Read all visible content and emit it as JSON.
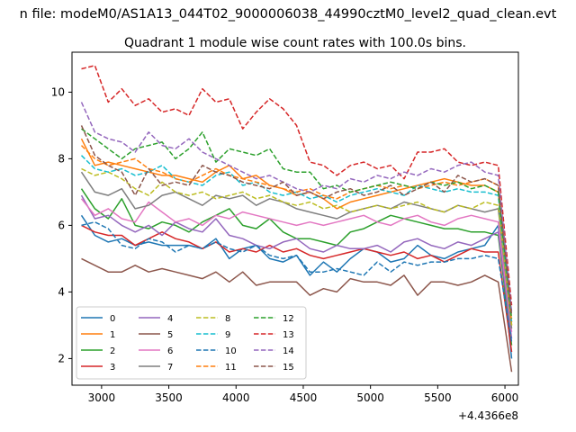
{
  "suptitle": "n file: modeM0/AS1A13_044T02_9000006038_44990cztM0_level2_quad_clean.evt",
  "chart_data": {
    "type": "line",
    "title": "Quadrant 1 module wise count rates with 100.0s bins.",
    "xlabel": "",
    "ylabel": "",
    "x_offset_label": "+4.4366e8",
    "xlim": [
      2780,
      6100
    ],
    "ylim": [
      1.2,
      11.2
    ],
    "xticks": [
      3000,
      3500,
      4000,
      4500,
      5000,
      5500,
      6000
    ],
    "yticks": [
      2,
      4,
      6,
      8,
      10
    ],
    "grid": false,
    "legend": {
      "position": "lower-left",
      "columns": 4
    },
    "x": [
      2850,
      2950,
      3050,
      3150,
      3250,
      3350,
      3450,
      3550,
      3650,
      3750,
      3850,
      3950,
      4050,
      4150,
      4250,
      4350,
      4450,
      4550,
      4650,
      4750,
      4850,
      4950,
      5050,
      5150,
      5250,
      5350,
      5450,
      5550,
      5650,
      5750,
      5850,
      5950,
      6050
    ],
    "series": [
      {
        "name": "0",
        "color": "#1f77b4",
        "dash": "solid",
        "values": [
          6.3,
          5.7,
          5.5,
          5.6,
          5.4,
          5.5,
          5.4,
          5.4,
          5.4,
          5.3,
          5.6,
          5.0,
          5.3,
          5.4,
          5.0,
          4.9,
          5.1,
          4.5,
          4.9,
          4.6,
          5.0,
          5.3,
          5.2,
          4.9,
          5.0,
          5.4,
          5.1,
          5.0,
          5.2,
          5.3,
          5.4,
          6.0,
          2.0
        ]
      },
      {
        "name": "1",
        "color": "#ff7f0e",
        "dash": "solid",
        "values": [
          8.6,
          7.8,
          7.9,
          7.8,
          7.7,
          7.6,
          7.5,
          7.5,
          7.4,
          7.3,
          7.6,
          7.8,
          7.4,
          7.5,
          7.2,
          7.1,
          6.9,
          7.0,
          6.8,
          6.5,
          6.7,
          6.8,
          6.9,
          7.0,
          7.1,
          7.2,
          7.3,
          7.4,
          7.3,
          7.2,
          7.2,
          7.0,
          3.0
        ]
      },
      {
        "name": "2",
        "color": "#2ca02c",
        "dash": "solid",
        "values": [
          7.1,
          6.5,
          6.2,
          6.8,
          6.0,
          5.9,
          6.1,
          6.0,
          5.8,
          6.1,
          6.3,
          6.5,
          6.0,
          5.9,
          6.2,
          5.8,
          5.6,
          5.6,
          5.5,
          5.4,
          5.8,
          5.9,
          6.1,
          6.3,
          6.2,
          6.1,
          6.0,
          5.9,
          5.9,
          5.8,
          5.8,
          5.7,
          2.4
        ]
      },
      {
        "name": "3",
        "color": "#d62728",
        "dash": "solid",
        "values": [
          6.0,
          5.8,
          5.7,
          5.7,
          5.4,
          5.6,
          5.8,
          5.6,
          5.5,
          5.3,
          5.5,
          5.2,
          5.3,
          5.2,
          5.4,
          5.2,
          5.3,
          5.1,
          5.0,
          5.1,
          5.2,
          5.3,
          5.2,
          5.1,
          5.2,
          5.0,
          5.1,
          4.9,
          5.1,
          5.3,
          5.2,
          5.2,
          2.2
        ]
      },
      {
        "name": "4",
        "color": "#9467bd",
        "dash": "solid",
        "values": [
          6.9,
          6.2,
          6.3,
          6.0,
          5.8,
          6.0,
          5.7,
          6.1,
          5.9,
          5.8,
          6.2,
          5.7,
          5.6,
          5.4,
          5.3,
          5.5,
          5.6,
          5.3,
          5.2,
          5.4,
          5.3,
          5.3,
          5.4,
          5.2,
          5.5,
          5.6,
          5.4,
          5.3,
          5.5,
          5.4,
          5.6,
          5.8,
          2.6
        ]
      },
      {
        "name": "5",
        "color": "#8c564b",
        "dash": "solid",
        "values": [
          5.0,
          4.8,
          4.6,
          4.6,
          4.8,
          4.6,
          4.7,
          4.6,
          4.5,
          4.4,
          4.6,
          4.3,
          4.6,
          4.2,
          4.3,
          4.3,
          4.3,
          3.9,
          4.1,
          4.0,
          4.4,
          4.3,
          4.3,
          4.2,
          4.5,
          3.9,
          4.3,
          4.3,
          4.2,
          4.3,
          4.5,
          4.3,
          1.6
        ]
      },
      {
        "name": "6",
        "color": "#e377c2",
        "dash": "solid",
        "values": [
          6.8,
          6.3,
          6.5,
          6.2,
          6.1,
          6.7,
          6.4,
          6.1,
          6.2,
          6.0,
          6.3,
          6.2,
          6.4,
          6.3,
          6.2,
          6.1,
          6.0,
          6.1,
          6.0,
          6.1,
          6.2,
          6.3,
          6.1,
          6.0,
          6.2,
          6.3,
          6.1,
          6.0,
          6.2,
          6.3,
          6.2,
          6.1,
          2.8
        ]
      },
      {
        "name": "7",
        "color": "#7f7f7f",
        "dash": "solid",
        "values": [
          7.6,
          7.0,
          6.9,
          7.1,
          6.5,
          6.6,
          6.9,
          7.0,
          6.8,
          6.6,
          6.9,
          6.8,
          6.9,
          6.6,
          6.8,
          6.7,
          6.5,
          6.4,
          6.3,
          6.2,
          6.4,
          6.5,
          6.6,
          6.5,
          6.7,
          6.6,
          6.5,
          6.4,
          6.6,
          6.5,
          6.4,
          6.5,
          2.9
        ]
      },
      {
        "name": "8",
        "color": "#bcbd22",
        "dash": "dashed",
        "values": [
          7.7,
          7.5,
          7.6,
          7.4,
          7.1,
          6.9,
          7.3,
          7.0,
          6.9,
          7.0,
          6.8,
          6.9,
          7.0,
          6.8,
          6.9,
          6.7,
          6.6,
          6.7,
          6.5,
          6.6,
          6.4,
          6.5,
          6.6,
          6.5,
          6.6,
          6.7,
          6.5,
          6.4,
          6.6,
          6.5,
          6.7,
          6.6,
          3.0
        ]
      },
      {
        "name": "9",
        "color": "#17becf",
        "dash": "dashed",
        "values": [
          8.1,
          7.7,
          7.6,
          7.7,
          7.5,
          7.6,
          7.8,
          7.4,
          7.3,
          7.2,
          7.5,
          7.6,
          7.2,
          7.3,
          7.0,
          6.9,
          7.0,
          6.8,
          6.9,
          6.7,
          6.9,
          7.0,
          7.1,
          7.0,
          6.9,
          7.2,
          7.1,
          7.0,
          7.1,
          7.0,
          7.0,
          6.9,
          3.1
        ]
      },
      {
        "name": "10",
        "color": "#1f77b4",
        "dash": "dashed",
        "values": [
          6.0,
          6.1,
          5.9,
          5.4,
          5.3,
          5.6,
          5.5,
          5.2,
          5.4,
          5.3,
          5.5,
          5.3,
          5.2,
          5.4,
          5.1,
          5.0,
          5.1,
          4.6,
          4.6,
          4.7,
          4.6,
          4.5,
          4.9,
          4.6,
          4.9,
          4.8,
          4.9,
          4.9,
          5.0,
          5.0,
          5.1,
          5.0,
          2.5
        ]
      },
      {
        "name": "11",
        "color": "#ff7f0e",
        "dash": "dashed",
        "values": [
          8.4,
          8.0,
          7.8,
          7.9,
          8.0,
          7.7,
          7.6,
          7.4,
          7.3,
          7.5,
          7.7,
          7.5,
          7.4,
          7.3,
          7.2,
          7.1,
          7.0,
          7.1,
          6.9,
          6.8,
          7.0,
          7.1,
          7.2,
          7.1,
          7.2,
          7.1,
          7.2,
          7.3,
          7.2,
          7.3,
          7.4,
          7.2,
          3.1
        ]
      },
      {
        "name": "12",
        "color": "#2ca02c",
        "dash": "dashed",
        "values": [
          8.9,
          8.6,
          8.3,
          8.0,
          8.3,
          8.4,
          8.5,
          8.0,
          8.3,
          8.8,
          7.9,
          8.3,
          8.2,
          8.1,
          8.3,
          7.7,
          7.6,
          7.6,
          7.1,
          7.2,
          7.0,
          7.1,
          7.2,
          7.3,
          7.2,
          7.1,
          7.3,
          7.2,
          7.3,
          7.1,
          7.2,
          7.0,
          3.2
        ]
      },
      {
        "name": "13",
        "color": "#d62728",
        "dash": "dashed",
        "values": [
          10.7,
          10.8,
          9.7,
          10.1,
          9.6,
          9.8,
          9.4,
          9.5,
          9.3,
          10.1,
          9.7,
          9.8,
          8.9,
          9.4,
          9.8,
          9.5,
          9.0,
          7.9,
          7.8,
          7.5,
          7.8,
          7.9,
          7.7,
          7.8,
          7.4,
          8.2,
          8.2,
          8.3,
          7.9,
          7.8,
          7.9,
          7.8,
          3.6
        ]
      },
      {
        "name": "14",
        "color": "#9467bd",
        "dash": "dashed",
        "values": [
          9.7,
          8.8,
          8.6,
          8.5,
          8.2,
          8.8,
          8.4,
          8.3,
          8.6,
          8.2,
          8.0,
          7.8,
          7.6,
          7.4,
          7.5,
          7.3,
          7.1,
          7.0,
          7.2,
          7.1,
          7.4,
          7.3,
          7.5,
          7.4,
          7.6,
          7.5,
          7.7,
          7.6,
          7.8,
          7.9,
          7.6,
          7.5,
          3.4
        ]
      },
      {
        "name": "15",
        "color": "#8c564b",
        "dash": "dashed",
        "values": [
          9.0,
          8.1,
          7.8,
          7.6,
          6.9,
          7.7,
          7.2,
          7.3,
          7.2,
          7.8,
          7.6,
          7.5,
          7.3,
          7.2,
          7.1,
          7.3,
          6.9,
          7.0,
          6.8,
          7.0,
          7.1,
          6.9,
          7.0,
          7.2,
          6.9,
          7.1,
          7.3,
          7.0,
          7.5,
          7.3,
          7.4,
          7.2,
          3.3
        ]
      }
    ]
  }
}
